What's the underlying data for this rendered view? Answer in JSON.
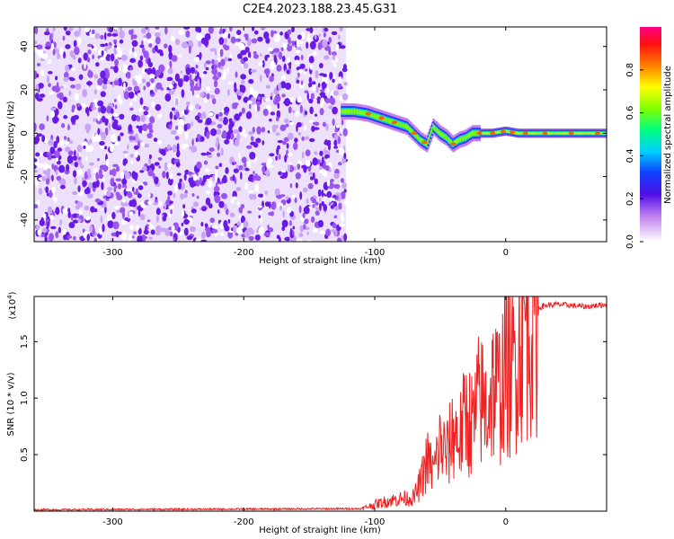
{
  "title": "C2E4.2023.188.23.45.G31",
  "chart_data": [
    {
      "type": "heatmap",
      "xlabel": "Height of straight line (km)",
      "ylabel": "Frequency (Hz)",
      "xlim": [
        -360,
        77
      ],
      "ylim": [
        -50,
        49
      ],
      "x_ticks": [
        -300,
        -200,
        -100,
        0
      ],
      "x_tick_labels": [
        "-300",
        "-200",
        "-100",
        "0"
      ],
      "y_ticks": [
        -40,
        -20,
        0,
        20,
        40
      ],
      "y_tick_labels": [
        "-40",
        "-20",
        "0",
        "20",
        "40"
      ],
      "noise_region_x": [
        -360,
        -122
      ],
      "track": {
        "x": [
          -125,
          -115,
          -105,
          -95,
          -85,
          -75,
          -70,
          -65,
          -60,
          -55,
          -50,
          -45,
          -40,
          -35,
          -30,
          -25,
          -20,
          -10,
          0,
          10,
          20,
          40,
          60,
          77
        ],
        "freq": [
          10,
          10,
          9,
          7,
          5,
          3,
          0,
          -3,
          -5,
          3,
          0,
          -2,
          -5,
          -3,
          -2,
          0,
          0,
          0,
          1,
          0,
          0,
          0,
          0,
          0
        ]
      },
      "colorbar": {
        "label": "Normalized spectral amplitude",
        "range": [
          0,
          1
        ],
        "ticks": [
          0.0,
          0.2,
          0.4,
          0.6,
          0.8
        ],
        "tick_labels": [
          "0.0",
          "0.2",
          "0.4",
          "0.6",
          "0.8"
        ]
      },
      "grid": false
    },
    {
      "type": "line",
      "xlabel": "Height of straight line (km)",
      "ylabel": "SNR (10 * v/v)",
      "y_multiplier": "(x10^4)",
      "y_multiplier_base": "(x10",
      "y_multiplier_exp": "4",
      "xlim": [
        -360,
        77
      ],
      "ylim": [
        0,
        19000
      ],
      "x_ticks": [
        -300,
        -200,
        -100,
        0
      ],
      "x_tick_labels": [
        "-300",
        "-200",
        "-100",
        "0"
      ],
      "y_ticks": [
        5000,
        10000,
        15000
      ],
      "y_tick_labels": [
        "0.5",
        "1.0",
        "1.5"
      ],
      "series": [
        {
          "color": "#ee2222",
          "x": [
            -360,
            -300,
            -200,
            -110,
            -100,
            -90,
            -80,
            -70,
            -65,
            -60,
            -55,
            -50,
            -45,
            -40,
            -35,
            -30,
            -25,
            -20,
            -15,
            -10,
            -5,
            0,
            5,
            10,
            15,
            20,
            25,
            30,
            40,
            50,
            60,
            70,
            77
          ],
          "y": [
            120,
            150,
            180,
            220,
            600,
            900,
            1100,
            1200,
            2500,
            4500,
            3500,
            6000,
            5000,
            7000,
            6500,
            8500,
            7500,
            10000,
            9000,
            11000,
            10500,
            13000,
            12000,
            15500,
            16500,
            17500,
            18000,
            18200,
            18300,
            18200,
            18100,
            18200,
            18300
          ]
        }
      ],
      "grid": false
    }
  ]
}
